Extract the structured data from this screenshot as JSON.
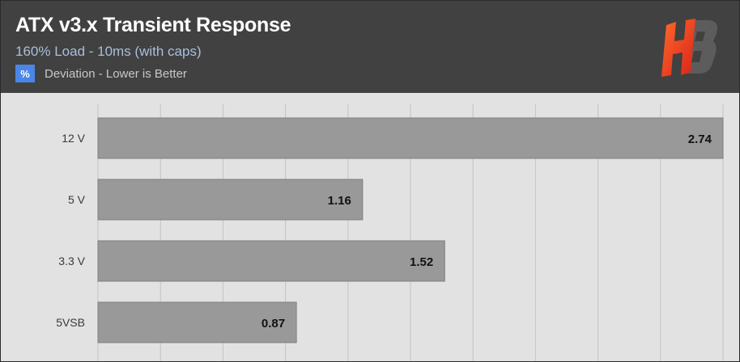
{
  "header": {
    "title": "ATX v3.x Transient Response",
    "subtitle": "160% Load - 10ms (with caps)",
    "legend_symbol": "%",
    "legend_label": "Deviation - Lower is Better"
  },
  "logo": {
    "name": "HB logo",
    "colors": [
      "#ff4a1c",
      "#e8291a",
      "#5a5a5a"
    ]
  },
  "colors": {
    "header_bg": "#414141",
    "plot_bg": "#e2e2e2",
    "bar": "#999999",
    "subtitle": "#a9bfdc",
    "legend_swatch": "#4a86e8"
  },
  "chart_data": {
    "type": "bar",
    "orientation": "horizontal",
    "categories": [
      "12 V",
      "5 V",
      "3.3 V",
      "5VSB"
    ],
    "values": [
      2.74,
      1.16,
      1.52,
      0.87
    ],
    "value_labels": [
      "2.74",
      "1.16",
      "1.52",
      "0.87"
    ],
    "xlim": [
      0,
      2.74
    ],
    "grid": true,
    "legend_placement": "top-left"
  }
}
